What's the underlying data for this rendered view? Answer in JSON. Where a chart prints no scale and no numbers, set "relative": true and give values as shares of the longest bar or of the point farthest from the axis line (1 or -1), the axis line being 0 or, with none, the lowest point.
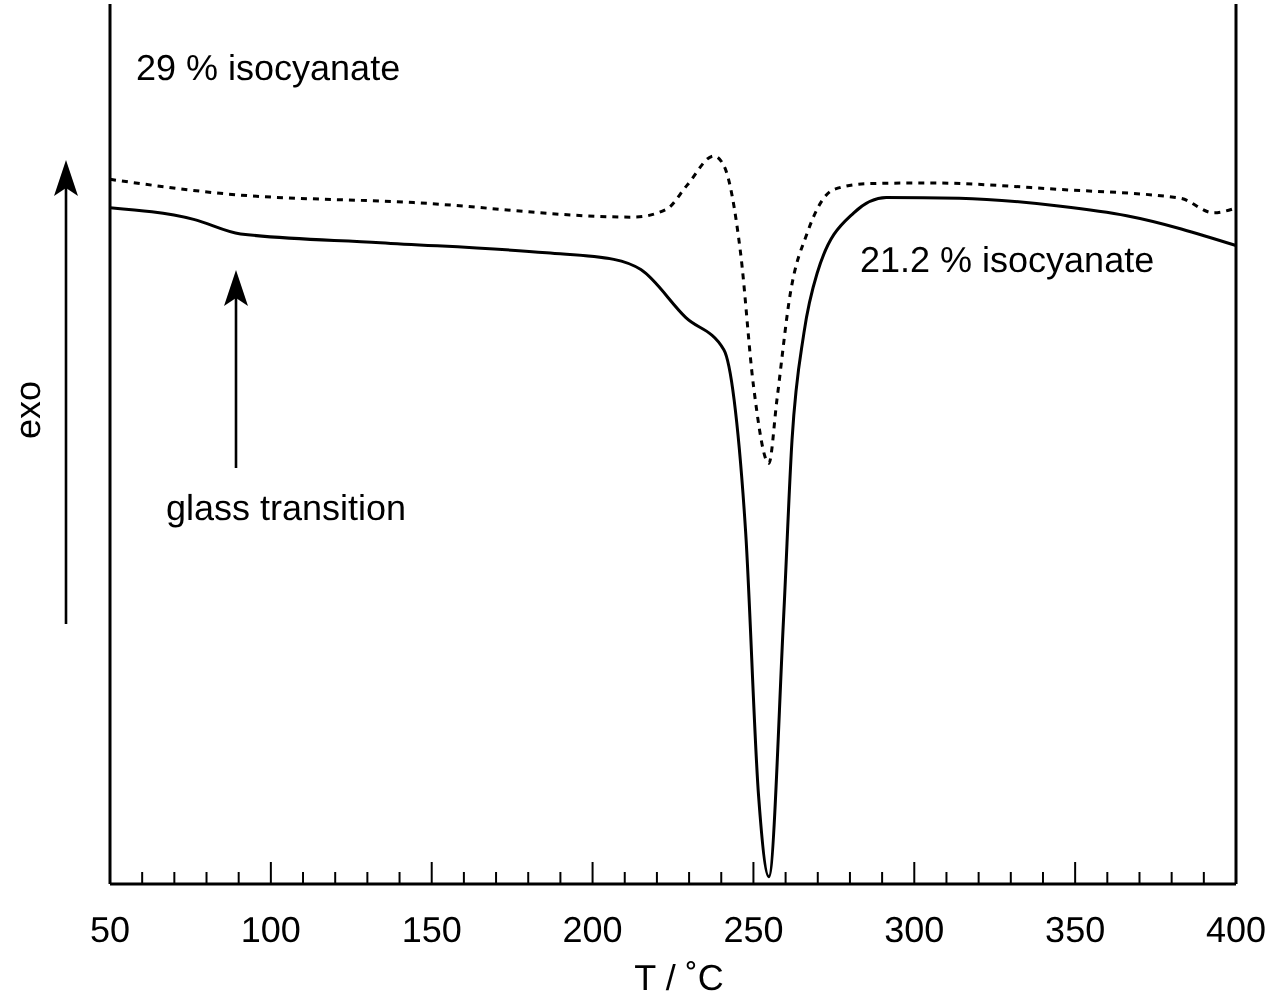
{
  "chart_data": {
    "type": "line",
    "relative": true,
    "xlabel": "T / ˚C",
    "ylabel": "exo",
    "legend": false,
    "grid": false,
    "marker": "none",
    "xlim": [
      50,
      400
    ],
    "xticks": [
      50,
      {
        "value": 60,
        "label": null
      },
      {
        "value": 70,
        "label": null
      },
      {
        "value": 80,
        "label": null
      },
      {
        "value": 90,
        "label": null
      },
      100,
      {
        "value": 110,
        "label": null
      },
      {
        "value": 120,
        "label": null
      },
      {
        "value": 130,
        "label": null
      },
      {
        "value": 140,
        "label": null
      },
      150,
      {
        "value": 160,
        "label": null
      },
      {
        "value": 170,
        "label": null
      },
      {
        "value": 180,
        "label": null
      },
      {
        "value": 190,
        "label": null
      },
      200,
      {
        "value": 210,
        "label": null
      },
      {
        "value": 220,
        "label": null
      },
      {
        "value": 230,
        "label": null
      },
      {
        "value": 240,
        "label": null
      },
      250,
      {
        "value": 260,
        "label": null
      },
      {
        "value": 270,
        "label": null
      },
      {
        "value": 280,
        "label": null
      },
      {
        "value": 290,
        "label": null
      },
      300,
      {
        "value": 310,
        "label": null
      },
      {
        "value": 320,
        "label": null
      },
      {
        "value": 330,
        "label": null
      },
      {
        "value": 340,
        "label": null
      },
      350,
      {
        "value": 360,
        "label": null
      },
      {
        "value": 370,
        "label": null
      },
      {
        "value": 380,
        "label": null
      },
      {
        "value": 390,
        "label": null
      },
      400
    ],
    "series": [
      {
        "name": "29 % isocyanate",
        "color": "#000000",
        "line_style": "dotted",
        "x": [
          50,
          86,
          144.5,
          212.8,
          223,
          229.4,
          237.7,
          240.8,
          246,
          250,
          254.8,
          257.3,
          261.5,
          266.7,
          275,
          285.3,
          304,
          345.4,
          382.7,
          393,
          398.9
        ],
        "values": [
          0.968,
          0.948,
          0.936,
          0.916,
          0.927,
          0.96,
          1,
          0.987,
          0.867,
          0.685,
          0.578,
          0.665,
          0.812,
          0.894,
          0.954,
          0.962,
          0.963,
          0.954,
          0.942,
          0.922,
          0.927
        ]
      },
      {
        "name": "21.2 % isocyanate",
        "color": "#000000",
        "line_style": "solid",
        "x": [
          50,
          76,
          90.6,
          134,
          185.7,
          206.6,
          215,
          229,
          240.8,
          244,
          247.6,
          251.6,
          254.8,
          259.4,
          262,
          265.7,
          269.8,
          281.2,
          291.3,
          314,
          345.5,
          366,
          400
        ],
        "values": [
          0.929,
          0.913,
          0.893,
          0.881,
          0.867,
          0.858,
          0.844,
          0.778,
          0.734,
          0.665,
          0.482,
          0.121,
          0.01,
          0.368,
          0.61,
          0.757,
          0.839,
          0.922,
          0.943,
          0.942,
          0.931,
          0.918,
          0.877
        ]
      }
    ],
    "annotations": [
      "glass transition"
    ]
  }
}
